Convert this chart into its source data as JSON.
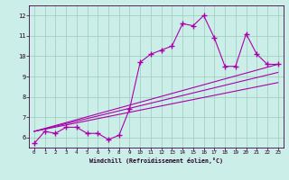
{
  "xlabel": "Windchill (Refroidissement éolien,°C)",
  "bg_color": "#cceee8",
  "line_color": "#aa00aa",
  "xlim": [
    -0.5,
    23.5
  ],
  "ylim": [
    5.5,
    12.5
  ],
  "xticks": [
    0,
    1,
    2,
    3,
    4,
    5,
    6,
    7,
    8,
    9,
    10,
    11,
    12,
    13,
    14,
    15,
    16,
    17,
    18,
    19,
    20,
    21,
    22,
    23
  ],
  "yticks": [
    6,
    7,
    8,
    9,
    10,
    11,
    12
  ],
  "main_x": [
    0,
    1,
    2,
    3,
    4,
    5,
    6,
    7,
    8,
    9,
    10,
    11,
    12,
    13,
    14,
    15,
    16,
    17,
    18,
    19,
    20,
    21,
    22,
    23
  ],
  "main_y": [
    5.7,
    6.3,
    6.2,
    6.5,
    6.5,
    6.2,
    6.2,
    5.9,
    6.1,
    7.4,
    9.7,
    10.1,
    10.3,
    10.5,
    11.6,
    11.5,
    12.0,
    10.9,
    9.5,
    9.5,
    11.1,
    10.1,
    9.6,
    9.6
  ],
  "line1_x": [
    0,
    23
  ],
  "line1_y": [
    6.3,
    9.6
  ],
  "line2_x": [
    0,
    23
  ],
  "line2_y": [
    6.3,
    9.2
  ],
  "line3_x": [
    0,
    23
  ],
  "line3_y": [
    6.3,
    8.7
  ]
}
